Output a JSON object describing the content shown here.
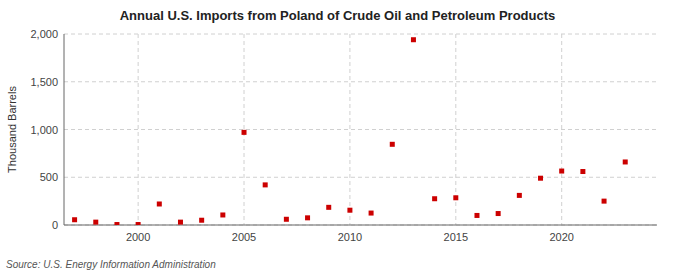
{
  "chart_data": {
    "type": "scatter",
    "title": "Annual U.S. Imports from Poland of Crude Oil and Petroleum Products",
    "ylabel": "Thousand Barrels",
    "source": "Source: U.S. Energy Information Administration",
    "x": [
      1997,
      1998,
      1999,
      2000,
      2001,
      2002,
      2003,
      2004,
      2005,
      2006,
      2007,
      2008,
      2009,
      2010,
      2011,
      2012,
      2013,
      2014,
      2015,
      2016,
      2017,
      2018,
      2019,
      2020,
      2021,
      2022,
      2023
    ],
    "values": [
      55,
      30,
      5,
      5,
      220,
      30,
      50,
      105,
      970,
      420,
      60,
      75,
      185,
      155,
      125,
      845,
      1940,
      275,
      285,
      100,
      120,
      310,
      490,
      565,
      560,
      250,
      660
    ],
    "color": "#cc0000",
    "marker": "square",
    "xlim": [
      1996.5,
      2024.5
    ],
    "xticks": [
      2000,
      2005,
      2010,
      2015,
      2020
    ],
    "ylim": [
      0,
      2000
    ],
    "yticks": [
      0,
      500,
      {
        "value": 1000,
        "label": "1,000"
      },
      {
        "value": 1500,
        "label": "1,500"
      },
      {
        "value": 2000,
        "label": "2,000"
      }
    ],
    "grid": true
  }
}
